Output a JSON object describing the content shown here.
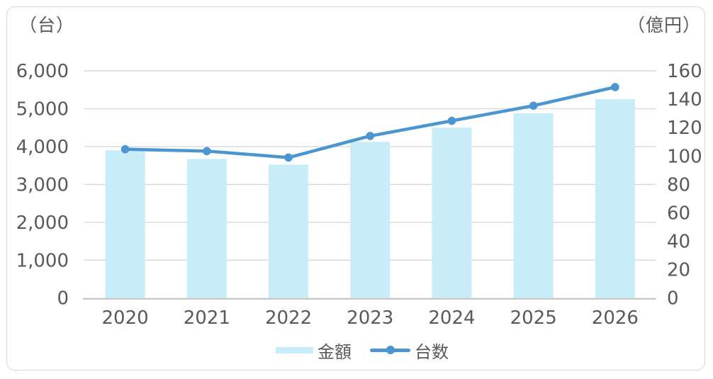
{
  "chart": {
    "left_axis_unit_label": "（台）",
    "right_axis_unit_label": "（億円）",
    "colors": {
      "bar_fill": "#c9ecf9",
      "line": "#4a96d2",
      "marker": "#4a96d2",
      "gridline": "#d9d9d9",
      "axis_baseline": "#bfbfbf",
      "text": "#595959",
      "frame_border": "#d9d9d9"
    }
  },
  "chart_data": {
    "type": "combo",
    "categories": [
      "2020",
      "2021",
      "2022",
      "2023",
      "2024",
      "2025",
      "2026"
    ],
    "series": [
      {
        "name": "金額",
        "type": "bar",
        "axis": "right",
        "unit": "億円",
        "values": [
          104,
          98,
          94,
          110,
          120,
          130,
          140
        ]
      },
      {
        "name": "台数",
        "type": "line",
        "axis": "left",
        "unit": "台",
        "values": [
          3930,
          3880,
          3710,
          4280,
          4680,
          5080,
          5570
        ]
      }
    ],
    "left_axis": {
      "label": "（台）",
      "min": 0,
      "max": 6000,
      "step": 1000,
      "tick_labels": [
        "0",
        "1,000",
        "2,000",
        "3,000",
        "4,000",
        "5,000",
        "6,000"
      ]
    },
    "right_axis": {
      "label": "（億円）",
      "min": 0,
      "max": 160,
      "step": 20,
      "tick_labels": [
        "0",
        "20",
        "40",
        "60",
        "80",
        "100",
        "120",
        "140",
        "160"
      ]
    },
    "grid": true,
    "legend_position": "bottom"
  }
}
